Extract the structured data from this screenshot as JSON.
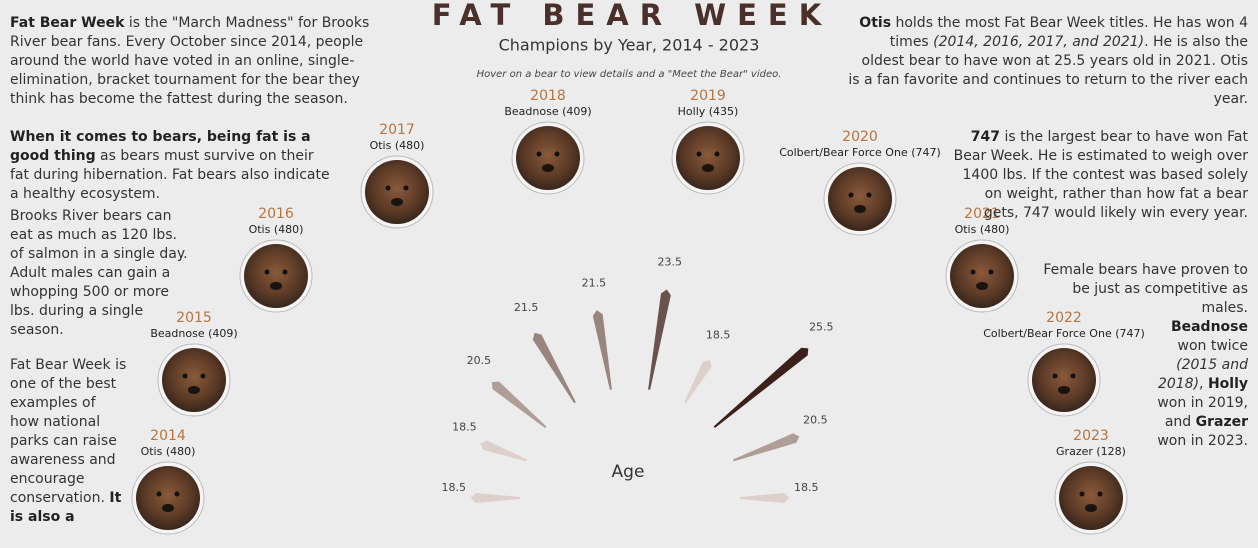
{
  "title": "FAT BEAR WEEK",
  "subtitle": "Champions by Year, 2014 - 2023",
  "hint": "Hover on a bear to view details and a \"Meet the Bear\" video.",
  "left_text": [
    {
      "runs": [
        {
          "bold": "Fat Bear Week"
        },
        {
          "text": " is the \"March Madness\" for Brooks River bear fans.  Every October since 2014, people around the world have voted in an online, single-elimination, bracket tournament for the bear they think has become the fattest during the season."
        }
      ]
    },
    {
      "runs": [
        {
          "bold": "When it comes to bears, being fat is a good thing"
        },
        {
          "text": " as bears must survive on their fat during hibernation. Fat bears also indicate a healthy ecosystem."
        }
      ]
    },
    {
      "runs": [
        {
          "text": "Brooks River bears can eat as much as 120 lbs. of salmon in a single day. Adult males can gain a whopping 500 or more lbs. during a single season."
        }
      ]
    },
    {
      "runs": [
        {
          "text": "Fat Bear Week is one of the best examples of how national parks can raise awareness and encourage conservation. "
        },
        {
          "bold": "It is also a"
        }
      ]
    }
  ],
  "right_text": [
    {
      "runs": [
        {
          "bold": "Otis"
        },
        {
          "text": " holds the most Fat Bear Week titles. He has won 4 times "
        },
        {
          "italic": "(2014, 2016, 2017, and 2021)"
        },
        {
          "text": ". He is also the oldest bear to have won at 25.5 years old in 2021. Otis is a fan favorite and continues to return to the river each year."
        }
      ]
    },
    {
      "runs": [
        {
          "bold": "747"
        },
        {
          "text": " is the largest bear to have won Fat Bear Week. He is estimated to weigh over 1400 lbs. If the contest was based solely on weight, rather than how fat a bear gets, 747 would likely win every year."
        }
      ]
    },
    {
      "runs": [
        {
          "text": "Female bears have proven to be just as competitive as males."
        }
      ]
    },
    {
      "runs": [
        {
          "bold": "Beadnose"
        },
        {
          "text": " won twice "
        },
        {
          "italic": "(2015 and 2018)"
        },
        {
          "text": ", "
        },
        {
          "bold": "Holly"
        },
        {
          "text": " won in 2019, and "
        },
        {
          "bold": "Grazer"
        },
        {
          "text": " won in 2023."
        }
      ]
    }
  ],
  "chart_data": {
    "type": "radial_bar",
    "axis_label": "Age",
    "categories": [
      "2014",
      "2015",
      "2016",
      "2017",
      "2018",
      "2019",
      "2020",
      "2021",
      "2022",
      "2023"
    ],
    "bears": [
      "Otis (480)",
      "Beadnose (409)",
      "Otis (480)",
      "Otis (480)",
      "Beadnose (409)",
      "Holly (435)",
      "Colbert/Bear Force One (747)",
      "Otis (480)",
      "Colbert/Bear Force One (747)",
      "Grazer (128)"
    ],
    "values": [
      18.5,
      18.5,
      20.5,
      21.5,
      21.5,
      23.5,
      18.5,
      25.5,
      20.5,
      18.5
    ],
    "color_range": [
      "#ddd0ca",
      "#3b2119"
    ],
    "year_color": "#b8743f"
  }
}
